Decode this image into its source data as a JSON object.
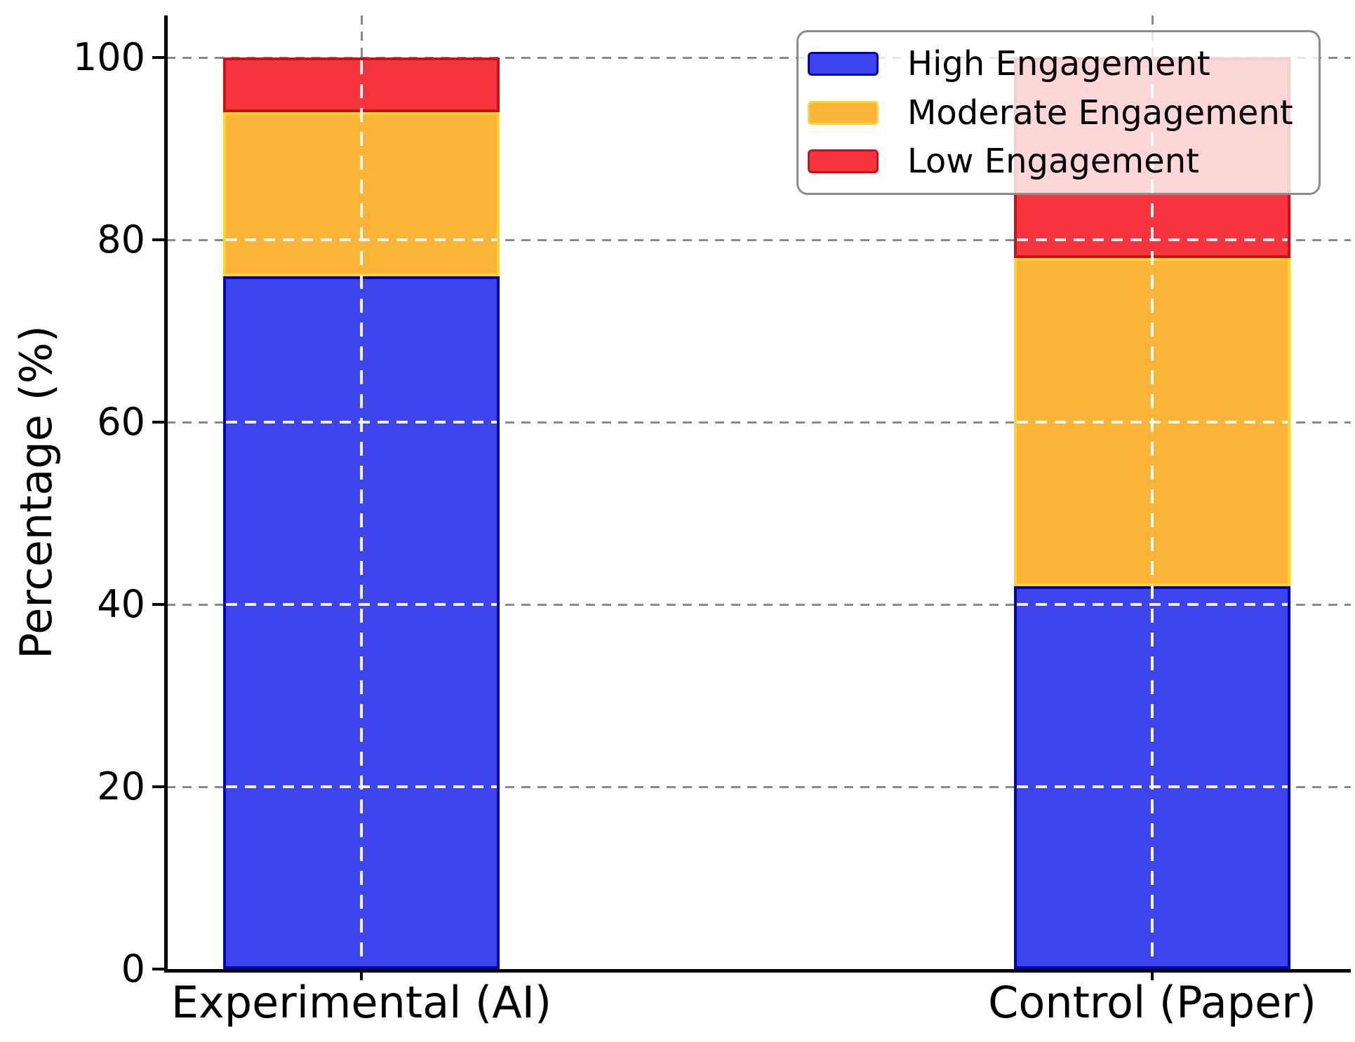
{
  "chart_data": {
    "type": "bar",
    "stacked": true,
    "title": "",
    "xlabel": "",
    "ylabel": "Percentage (%)",
    "categories": [
      "Experimental (AI)",
      "Control (Paper)"
    ],
    "series": [
      {
        "name": "High Engagement",
        "values": [
          76,
          42
        ],
        "fill": "#3d44ec",
        "edge": "#0003b4"
      },
      {
        "name": "Moderate Engagement",
        "values": [
          18,
          36
        ],
        "fill": "#fcb438",
        "edge": "#ffd32e"
      },
      {
        "name": "Low Engagement",
        "values": [
          6,
          22
        ],
        "fill": "#f6353e",
        "edge": "#cf0e18"
      }
    ],
    "ylim": [
      0,
      105
    ],
    "yticks": [
      0,
      20,
      40,
      60,
      80,
      100
    ],
    "ytick_labels": [
      "0",
      "20",
      "40",
      "60",
      "80",
      "100"
    ],
    "grid": true,
    "grid_style": "dashed",
    "legend_position": "upper right",
    "legend_items": [
      "High Engagement",
      "Moderate Engagement",
      "Low Engagement"
    ]
  },
  "colors": {
    "grid_gray": "#8a8a8a",
    "grid_on_bars": "#ffffff",
    "axis_spine": "#000000",
    "legend_border": "#8c8c8c",
    "legend_background": "rgba(255,255,255,0.8)",
    "text": "#000000"
  }
}
